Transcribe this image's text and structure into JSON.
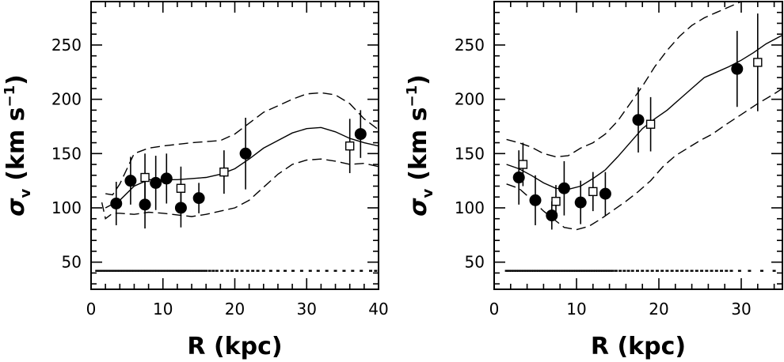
{
  "chart_data": [
    {
      "type": "scatter",
      "xlabel": "R (kpc)",
      "ylabel_symbol": "σ",
      "ylabel_subscript": "v",
      "ylabel_units": "(km s",
      "ylabel_exponent": "−1",
      "ylabel_close": ")",
      "xlim": [
        0,
        40
      ],
      "ylim": [
        25,
        290
      ],
      "xticks": [
        0,
        10,
        20,
        30,
        40
      ],
      "yticks": [
        50,
        100,
        150,
        200,
        250
      ],
      "series": [
        {
          "marker": "filled-circle",
          "points": [
            {
              "x": 3.5,
              "y": 104,
              "err": 20
            },
            {
              "x": 5.5,
              "y": 125,
              "err": 22
            },
            {
              "x": 7.5,
              "y": 103,
              "err": 22
            },
            {
              "x": 9.0,
              "y": 123,
              "err": 25
            },
            {
              "x": 10.5,
              "y": 127,
              "err": 23
            },
            {
              "x": 12.5,
              "y": 100,
              "err": 18
            },
            {
              "x": 15.0,
              "y": 109,
              "err": 14
            },
            {
              "x": 21.5,
              "y": 150,
              "err": 33
            },
            {
              "x": 37.5,
              "y": 168,
              "err": 22
            }
          ]
        },
        {
          "marker": "open-square",
          "points": [
            {
              "x": 7.5,
              "y": 128,
              "err": 22
            },
            {
              "x": 12.5,
              "y": 118,
              "err": 20
            },
            {
              "x": 18.5,
              "y": 133,
              "err": 20
            },
            {
              "x": 36.0,
              "y": 157,
              "err": 25
            }
          ]
        }
      ],
      "model": {
        "median": [
          [
            2.0,
            100
          ],
          [
            4.0,
            107
          ],
          [
            6.0,
            120
          ],
          [
            8.0,
            126
          ],
          [
            10.0,
            126
          ],
          [
            12.0,
            126
          ],
          [
            14.0,
            127
          ],
          [
            16.0,
            128
          ],
          [
            18.0,
            131
          ],
          [
            20.0,
            136
          ],
          [
            22.0,
            145
          ],
          [
            24.0,
            155
          ],
          [
            26.0,
            162
          ],
          [
            28.0,
            169
          ],
          [
            30.0,
            173
          ],
          [
            32.0,
            174
          ],
          [
            34.0,
            170
          ],
          [
            36.0,
            164
          ],
          [
            38.0,
            160
          ],
          [
            40.0,
            157
          ]
        ],
        "upper": [
          [
            2.0,
            113
          ],
          [
            3.0,
            112
          ],
          [
            4.0,
            122
          ],
          [
            6.0,
            150
          ],
          [
            8.0,
            155
          ],
          [
            10.0,
            157
          ],
          [
            14.0,
            160
          ],
          [
            18.0,
            162
          ],
          [
            20.0,
            168
          ],
          [
            24.0,
            188
          ],
          [
            28.0,
            200
          ],
          [
            30.0,
            205
          ],
          [
            32.0,
            206
          ],
          [
            34.0,
            204
          ],
          [
            36.0,
            196
          ],
          [
            38.0,
            182
          ],
          [
            40.0,
            172
          ]
        ],
        "lower": [
          [
            1.5,
            105
          ],
          [
            2.0,
            90
          ],
          [
            3.0,
            95
          ],
          [
            4.0,
            95
          ],
          [
            6.0,
            94
          ],
          [
            8.0,
            96
          ],
          [
            10.0,
            95
          ],
          [
            14.0,
            92
          ],
          [
            16.0,
            94
          ],
          [
            18.0,
            97
          ],
          [
            20.0,
            100
          ],
          [
            22.0,
            107
          ],
          [
            24.0,
            119
          ],
          [
            26.0,
            131
          ],
          [
            28.0,
            140
          ],
          [
            30.0,
            144
          ],
          [
            32.0,
            145
          ],
          [
            34.0,
            143
          ],
          [
            36.0,
            140
          ],
          [
            38.0,
            141
          ],
          [
            40.0,
            138
          ]
        ]
      },
      "rug": {
        "y": 42,
        "x": [
          0.8,
          1.2,
          1.6,
          2.0,
          2.4,
          2.8,
          3.2,
          3.6,
          4.0,
          4.4,
          4.8,
          5.2,
          5.6,
          6.0,
          6.4,
          6.8,
          7.2,
          7.6,
          8.0,
          8.4,
          8.8,
          9.2,
          9.6,
          10.0,
          10.4,
          10.8,
          11.2,
          11.6,
          12.0,
          12.4,
          12.8,
          13.2,
          13.6,
          14.0,
          14.4,
          14.8,
          15.2,
          15.6,
          16.0,
          16.5,
          17.0,
          17.5,
          18.2,
          19.0,
          19.6,
          20.3,
          21.0,
          21.8,
          22.5,
          23.2,
          24.0,
          25.0,
          26.0,
          27.0,
          28.1,
          29.3,
          30.5,
          31.6,
          32.8,
          34.0,
          35.2,
          36.4,
          37.6,
          38.9,
          39.6
        ]
      }
    },
    {
      "type": "scatter",
      "xlabel": "R (kpc)",
      "ylabel_symbol": "σ",
      "ylabel_subscript": "v",
      "ylabel_units": "(km s",
      "ylabel_exponent": "−1",
      "ylabel_close": ")",
      "xlim": [
        0,
        35
      ],
      "ylim": [
        25,
        290
      ],
      "xticks": [
        0,
        10,
        20,
        30
      ],
      "yticks": [
        50,
        100,
        150,
        200,
        250
      ],
      "series": [
        {
          "marker": "filled-circle",
          "points": [
            {
              "x": 3.0,
              "y": 128,
              "err": 25
            },
            {
              "x": 5.0,
              "y": 107,
              "err": 23
            },
            {
              "x": 7.0,
              "y": 93,
              "err": 13
            },
            {
              "x": 8.5,
              "y": 118,
              "err": 25
            },
            {
              "x": 10.5,
              "y": 105,
              "err": 20
            },
            {
              "x": 13.5,
              "y": 113,
              "err": 20
            },
            {
              "x": 17.5,
              "y": 181,
              "err": 30
            },
            {
              "x": 29.5,
              "y": 228,
              "err": 35
            }
          ]
        },
        {
          "marker": "open-square",
          "points": [
            {
              "x": 3.5,
              "y": 140,
              "err": 20
            },
            {
              "x": 7.5,
              "y": 106,
              "err": 15
            },
            {
              "x": 12.0,
              "y": 115,
              "err": 18
            },
            {
              "x": 19.0,
              "y": 177,
              "err": 25
            },
            {
              "x": 32.0,
              "y": 234,
              "err": 45
            }
          ]
        }
      ],
      "model": {
        "median": [
          [
            1.5,
            140
          ],
          [
            3.0,
            136
          ],
          [
            4.5,
            130
          ],
          [
            6.0,
            123
          ],
          [
            7.5,
            118
          ],
          [
            9.0,
            117
          ],
          [
            10.5,
            120
          ],
          [
            12.0,
            127
          ],
          [
            13.5,
            135
          ],
          [
            15.0,
            147
          ],
          [
            16.5,
            160
          ],
          [
            18.0,
            173
          ],
          [
            19.5,
            182
          ],
          [
            21.0,
            190
          ],
          [
            22.5,
            200
          ],
          [
            24.0,
            210
          ],
          [
            25.5,
            220
          ],
          [
            27.0,
            225
          ],
          [
            28.5,
            230
          ],
          [
            30.0,
            236
          ],
          [
            31.5,
            243
          ],
          [
            33.0,
            251
          ],
          [
            34.5,
            257
          ],
          [
            35.0,
            259
          ]
        ],
        "upper": [
          [
            1.5,
            163
          ],
          [
            3.0,
            160
          ],
          [
            4.5,
            156
          ],
          [
            6.0,
            150
          ],
          [
            7.5,
            147
          ],
          [
            9.0,
            148
          ],
          [
            10.5,
            155
          ],
          [
            12.0,
            160
          ],
          [
            13.5,
            168
          ],
          [
            15.0,
            180
          ],
          [
            16.5,
            196
          ],
          [
            18.0,
            212
          ],
          [
            19.5,
            230
          ],
          [
            21.0,
            245
          ],
          [
            22.5,
            258
          ],
          [
            24.0,
            268
          ],
          [
            25.5,
            275
          ],
          [
            27.0,
            280
          ],
          [
            28.5,
            285
          ],
          [
            30.0,
            290
          ],
          [
            31.5,
            290
          ],
          [
            33.0,
            290
          ],
          [
            35.0,
            290
          ]
        ],
        "lower": [
          [
            1.5,
            122
          ],
          [
            3.0,
            118
          ],
          [
            4.5,
            108
          ],
          [
            6.0,
            97
          ],
          [
            7.5,
            88
          ],
          [
            8.5,
            82
          ],
          [
            10.0,
            80
          ],
          [
            11.5,
            83
          ],
          [
            13.0,
            90
          ],
          [
            14.5,
            98
          ],
          [
            16.0,
            106
          ],
          [
            17.5,
            115
          ],
          [
            19.0,
            125
          ],
          [
            20.5,
            138
          ],
          [
            22.0,
            148
          ],
          [
            23.5,
            155
          ],
          [
            25.0,
            162
          ],
          [
            26.5,
            168
          ],
          [
            28.0,
            176
          ],
          [
            30.0,
            186
          ],
          [
            32.0,
            196
          ],
          [
            34.0,
            205
          ],
          [
            35.0,
            210
          ]
        ]
      },
      "rug": {
        "y": 42,
        "x": [
          1.5,
          1.8,
          2.1,
          2.4,
          2.7,
          3.0,
          3.3,
          3.6,
          3.9,
          4.2,
          4.5,
          4.8,
          5.1,
          5.4,
          5.7,
          6.0,
          6.3,
          6.6,
          6.9,
          7.2,
          7.5,
          7.8,
          8.1,
          8.4,
          8.7,
          9.0,
          9.3,
          9.6,
          9.9,
          10.2,
          10.5,
          10.8,
          11.1,
          11.4,
          11.7,
          12.0,
          12.3,
          12.6,
          12.9,
          13.2,
          13.5,
          13.8,
          14.1,
          14.4,
          14.8,
          15.3,
          15.8,
          16.3,
          16.8,
          17.4,
          18.0,
          18.6,
          19.2,
          19.8,
          20.4,
          21.0,
          21.6,
          22.2,
          22.8,
          23.4,
          24.0,
          24.6,
          25.2,
          25.8,
          26.4,
          27.0,
          27.6,
          28.2,
          28.8,
          29.8,
          31.0,
          32.5,
          34.0
        ]
      }
    }
  ]
}
